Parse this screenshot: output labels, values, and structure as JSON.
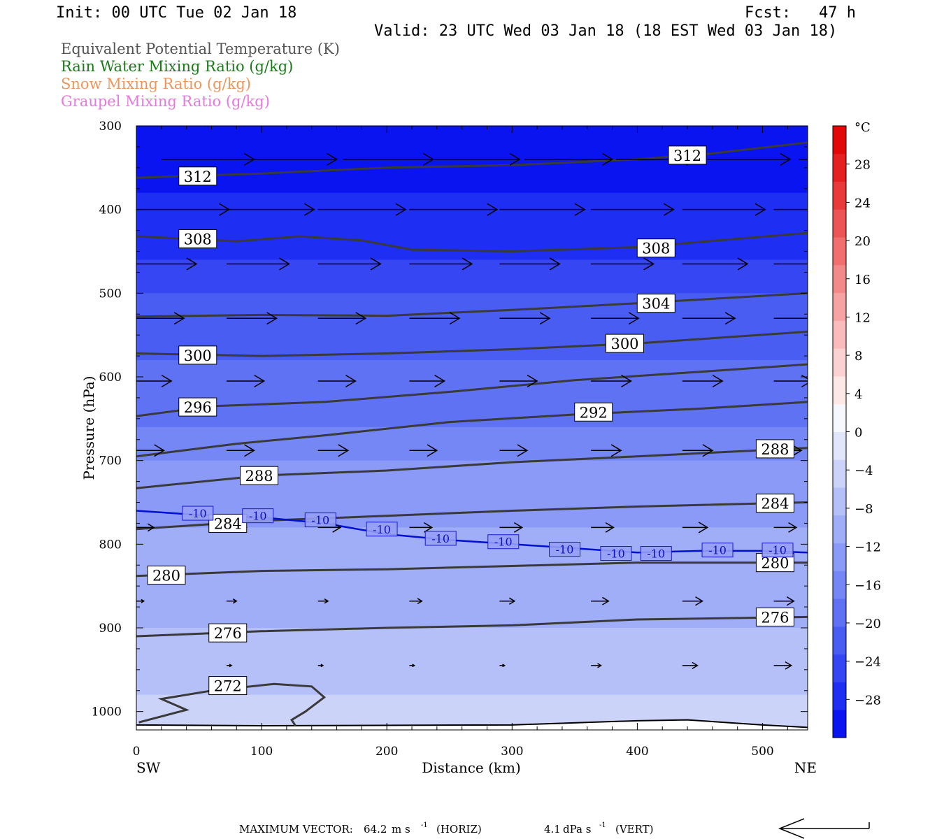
{
  "header": {
    "init": "Init: 00 UTC Tue 02 Jan 18",
    "fcst": "Fcst:   47 h",
    "valid": "Valid: 23 UTC Wed 03 Jan 18 (18 EST Wed 03 Jan 18)",
    "legend": [
      {
        "text": "Equivalent Potential Temperature (K)",
        "color": "#555555"
      },
      {
        "text": "Rain Water Mixing Ratio (g/kg)",
        "color": "#1a7a1a"
      },
      {
        "text": "Snow Mixing Ratio (g/kg)",
        "color": "#f0955a"
      },
      {
        "text": "Graupel Mixing Ratio (g/kg)",
        "color": "#e878e0"
      }
    ]
  },
  "footer": {
    "max_label": "MAXIMUM VECTOR:",
    "horiz_value": "64.2",
    "horiz_unit": "m s",
    "horiz_exp": "-1",
    "horiz_tag": "(HORIZ)",
    "vert_value": "4.1",
    "vert_unit": "dPa s",
    "vert_exp": "-1",
    "vert_tag": "(VERT)"
  },
  "chart_data": {
    "type": "cross-section",
    "xlabel": "Distance (km)",
    "ylabel": "Pressure (hPa)",
    "xlim": [
      0,
      536
    ],
    "ylim": [
      300,
      1022
    ],
    "x_ticks": [
      0,
      100,
      200,
      300,
      400,
      500
    ],
    "y_ticks": [
      300,
      400,
      500,
      600,
      700,
      800,
      900,
      1000
    ],
    "left_end": "SW",
    "right_end": "NE",
    "colorbar": {
      "unit": "°C",
      "min": -32,
      "max": 32,
      "labels": [
        28,
        24,
        20,
        16,
        12,
        8,
        4,
        0,
        -4,
        -8,
        -12,
        -16,
        -20,
        -24,
        -28
      ],
      "colors": [
        "#0a14f0",
        "#1e2ef2",
        "#3546f2",
        "#4a5df3",
        "#5f72f4",
        "#7586f5",
        "#8a9af6",
        "#a0adf7",
        "#b6c0f8",
        "#ccd3f9",
        "#e2e6fb",
        "#f7f8fe",
        "#fde8e8",
        "#fbd2d2",
        "#f9bbbb",
        "#f6a3a3",
        "#f38a8a",
        "#f07070",
        "#ec5555",
        "#e83a3a",
        "#e42020",
        "#e00808"
      ]
    },
    "temperature_bands": [
      {
        "p": 300,
        "t": -31
      },
      {
        "p": 340,
        "t": -30
      },
      {
        "p": 380,
        "t": -29
      },
      {
        "p": 420,
        "t": -27
      },
      {
        "p": 460,
        "t": -25
      },
      {
        "p": 500,
        "t": -23
      },
      {
        "p": 540,
        "t": -21
      },
      {
        "p": 580,
        "t": -19
      },
      {
        "p": 620,
        "t": -18
      },
      {
        "p": 660,
        "t": -16
      },
      {
        "p": 700,
        "t": -14
      },
      {
        "p": 740,
        "t": -12
      },
      {
        "p": 780,
        "t": -11
      },
      {
        "p": 820,
        "t": -10
      },
      {
        "p": 860,
        "t": -9
      },
      {
        "p": 900,
        "t": -8
      },
      {
        "p": 940,
        "t": -7
      },
      {
        "p": 980,
        "t": -5
      },
      {
        "p": 1022,
        "t": -4
      }
    ],
    "theta_e_contours": [
      {
        "value": 312,
        "x": [
          0,
          100,
          200,
          300,
          400,
          460,
          536
        ],
        "p": [
          362,
          357,
          350,
          347,
          340,
          333,
          320
        ],
        "labels": [
          {
            "x": 49,
            "p": 360
          },
          {
            "x": 440,
            "p": 335
          }
        ]
      },
      {
        "value": 308,
        "x": [
          0,
          80,
          130,
          180,
          220,
          300,
          400,
          536
        ],
        "p": [
          432,
          438,
          432,
          437,
          448,
          450,
          445,
          428
        ],
        "labels": [
          {
            "x": 49,
            "p": 435
          },
          {
            "x": 415,
            "p": 446
          }
        ]
      },
      {
        "value": 304,
        "x": [
          0,
          100,
          200,
          300,
          400,
          536
        ],
        "p": [
          528,
          526,
          527,
          520,
          512,
          500
        ],
        "labels": [
          {
            "x": 415,
            "p": 512
          }
        ]
      },
      {
        "value": 300,
        "x": [
          0,
          100,
          200,
          300,
          400,
          536
        ],
        "p": [
          572,
          575,
          572,
          567,
          560,
          546
        ],
        "labels": [
          {
            "x": 49,
            "p": 574
          },
          {
            "x": 390,
            "p": 560
          }
        ]
      },
      {
        "value": 296,
        "x": [
          0,
          60,
          150,
          250,
          350,
          450,
          536
        ],
        "p": [
          647,
          635,
          630,
          618,
          604,
          594,
          585
        ],
        "labels": [
          {
            "x": 49,
            "p": 636
          }
        ]
      },
      {
        "value": 292,
        "x": [
          0,
          80,
          150,
          250,
          350,
          450,
          536
        ],
        "p": [
          695,
          680,
          670,
          654,
          645,
          638,
          630
        ],
        "labels": [
          {
            "x": 365,
            "p": 642
          }
        ]
      },
      {
        "value": 288,
        "x": [
          0,
          100,
          200,
          300,
          400,
          536
        ],
        "p": [
          733,
          718,
          712,
          702,
          695,
          685
        ],
        "labels": [
          {
            "x": 98,
            "p": 718
          },
          {
            "x": 510,
            "p": 686
          }
        ]
      },
      {
        "value": 284,
        "x": [
          0,
          100,
          200,
          300,
          400,
          536
        ],
        "p": [
          782,
          772,
          766,
          760,
          755,
          750
        ],
        "labels": [
          {
            "x": 73,
            "p": 775
          },
          {
            "x": 510,
            "p": 751
          }
        ]
      },
      {
        "value": 280,
        "x": [
          0,
          100,
          200,
          300,
          400,
          536
        ],
        "p": [
          838,
          832,
          830,
          826,
          822,
          822
        ],
        "labels": [
          {
            "x": 24,
            "p": 837
          },
          {
            "x": 510,
            "p": 822
          }
        ]
      },
      {
        "value": 276,
        "x": [
          0,
          100,
          200,
          300,
          400,
          536
        ],
        "p": [
          910,
          904,
          900,
          897,
          890,
          887
        ],
        "labels": [
          {
            "x": 73,
            "p": 906
          },
          {
            "x": 510,
            "p": 887
          }
        ]
      },
      {
        "value": 272,
        "x": [
          2,
          40,
          20,
          60,
          110,
          140,
          150,
          135,
          124,
          127
        ],
        "p": [
          1013,
          998,
          985,
          975,
          967,
          970,
          983,
          1000,
          1010,
          1017
        ],
        "labels": [
          {
            "x": 73,
            "p": 969
          }
        ]
      }
    ],
    "temperature_contours": [
      {
        "value": "-10",
        "x": [
          0,
          50,
          100,
          150,
          200,
          250,
          300,
          350,
          400,
          450,
          500,
          536
        ],
        "p": [
          760,
          765,
          768,
          775,
          788,
          795,
          800,
          805,
          810,
          808,
          808,
          810
        ],
        "labels": [
          {
            "x": 49,
            "p": 763
          },
          {
            "x": 97,
            "p": 766
          },
          {
            "x": 147,
            "p": 771
          },
          {
            "x": 196,
            "p": 782
          },
          {
            "x": 243,
            "p": 793
          },
          {
            "x": 293,
            "p": 797
          },
          {
            "x": 342,
            "p": 806
          },
          {
            "x": 383,
            "p": 811
          },
          {
            "x": 415,
            "p": 811
          },
          {
            "x": 464,
            "p": 807
          },
          {
            "x": 512,
            "p": 807
          }
        ]
      }
    ],
    "wind_vectors": [
      {
        "p": 340,
        "x": [
          20,
          92,
          165,
          238,
          310,
          383,
          456,
          529
        ],
        "len": [
          3.7,
          3.4,
          3.6,
          3.4,
          3.5,
          3.2,
          3.3,
          3.2
        ]
      },
      {
        "p": 400,
        "x": [
          0,
          72,
          145,
          218,
          290,
          363,
          436,
          509
        ],
        "len": [
          3.7,
          3.5,
          3.5,
          3.5,
          3.4,
          3.3,
          3.3,
          3.3
        ]
      },
      {
        "p": 465,
        "x": [
          0,
          72,
          145,
          218,
          290,
          363,
          436,
          509
        ],
        "len": [
          2.4,
          2.5,
          2.5,
          2.5,
          2.4,
          2.5,
          2.6,
          1.9
        ]
      },
      {
        "p": 530,
        "x": [
          0,
          72,
          145,
          218,
          290,
          363,
          436,
          509
        ],
        "len": [
          1.9,
          2.0,
          1.9,
          2.0,
          2.0,
          1.9,
          2.1,
          1.9
        ]
      },
      {
        "p": 605,
        "x": [
          0,
          72,
          145,
          218,
          290,
          363,
          436,
          509
        ],
        "len": [
          1.4,
          1.5,
          1.5,
          1.4,
          1.5,
          1.6,
          1.6,
          1.5
        ]
      },
      {
        "p": 688,
        "x": [
          0,
          72,
          145,
          218,
          290,
          363,
          436,
          509
        ],
        "len": [
          1.1,
          1.1,
          1.2,
          1.1,
          1.1,
          1.2,
          1.2,
          1.1
        ]
      },
      {
        "p": 780,
        "x": [
          0,
          72,
          145,
          218,
          290,
          363,
          436,
          509
        ],
        "len": [
          0.7,
          0.8,
          0.9,
          0.9,
          0.9,
          0.9,
          1.0,
          0.9
        ]
      },
      {
        "p": 868,
        "x": [
          0,
          72,
          145,
          218,
          290,
          363,
          436,
          509
        ],
        "len": [
          0.3,
          0.4,
          0.4,
          0.5,
          0.6,
          0.7,
          0.8,
          0.8
        ]
      },
      {
        "p": 945,
        "x": [
          72,
          145,
          218,
          290,
          363,
          436,
          509
        ],
        "len": [
          0.2,
          0.2,
          0.2,
          0.2,
          0.4,
          0.6,
          0.7
        ]
      }
    ],
    "vector_scale_km": 20
  }
}
